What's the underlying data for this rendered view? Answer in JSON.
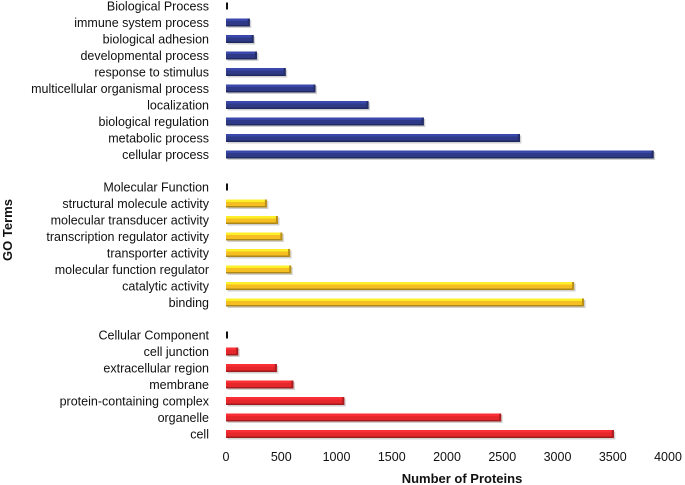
{
  "chart_data": {
    "type": "bar",
    "orientation": "horizontal",
    "title": "",
    "xlabel": "Number of Proteins",
    "ylabel": "GO Terms",
    "xlim": [
      0,
      4000
    ],
    "xticks": [
      "0",
      "500",
      "1000",
      "1500",
      "2000",
      "2500",
      "3000",
      "3500",
      "4000"
    ],
    "grid": false,
    "groups": [
      {
        "name": "Biological Process",
        "color": "#2e3a87",
        "header_value": 0,
        "categories": [
          "immune system process",
          "biological adhesion",
          "developmental process",
          "response to stimulus",
          "multicellular organismal process",
          "localization",
          "biological regulation",
          "metabolic process",
          "cellular process"
        ],
        "values": [
          215,
          250,
          280,
          540,
          810,
          1290,
          1790,
          2660,
          3870
        ]
      },
      {
        "name": "Molecular Function",
        "color": "#f5bf22",
        "header_value": 0,
        "categories": [
          "structural molecule activity",
          "molecular transducer activity",
          "transcription regulator activity",
          "transporter activity",
          "molecular function regulator",
          "catalytic activity",
          "binding"
        ],
        "values": [
          370,
          470,
          510,
          580,
          590,
          3150,
          3240
        ]
      },
      {
        "name": "Cellular Component",
        "color": "#e5262a",
        "header_value": 0,
        "categories": [
          "cell junction",
          "extracellular region",
          "membrane",
          "protein-containing complex",
          "organelle",
          "cell"
        ],
        "values": [
          110,
          460,
          610,
          1070,
          2490,
          3510
        ]
      }
    ]
  }
}
